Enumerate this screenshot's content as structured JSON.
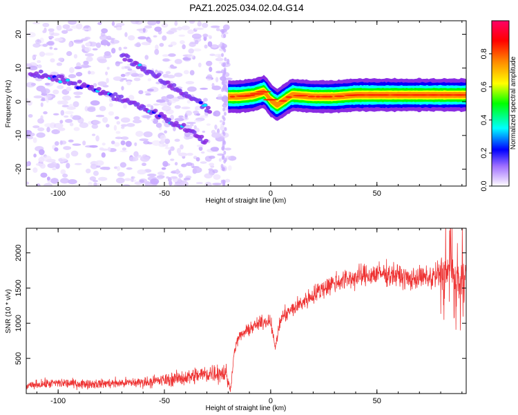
{
  "figure": {
    "title": "PAZ1.2025.034.02.04.G14"
  },
  "chart_data": [
    {
      "type": "heatmap",
      "title": "PAZ1.2025.034.02.04.G14",
      "xlabel": "Height of straight line (km)",
      "ylabel": "Frequency (Hz)",
      "xlim": [
        -115,
        92
      ],
      "ylim": [
        -25,
        24
      ],
      "xticks": [
        -100,
        -50,
        0,
        50
      ],
      "yticks": [
        -20,
        -10,
        0,
        10,
        20
      ],
      "colorbar": {
        "label": "Normalized spectral amplitude",
        "range": [
          0,
          1
        ],
        "ticks": [
          0.0,
          0.2,
          0.4,
          0.6,
          0.8
        ],
        "colormap": [
          "#ffffff",
          "#c8a8ff",
          "#8a2be2",
          "#0000ff",
          "#00ffff",
          "#00ff00",
          "#ffff00",
          "#ff8c00",
          "#ff0000",
          "#ff0066"
        ]
      },
      "features": [
        {
          "name": "upper_track",
          "x": [
            -113,
            -100,
            -90,
            -80,
            -70,
            -60,
            -50,
            -40,
            -30
          ],
          "y": [
            8,
            7,
            5,
            3,
            1,
            -2,
            -5,
            -8,
            -12
          ],
          "amplitude": 0.3
        },
        {
          "name": "lower_track",
          "x": [
            -70,
            -60,
            -55,
            -48,
            -42,
            -36,
            -32,
            -28
          ],
          "y": [
            14,
            10,
            8,
            5,
            3,
            1,
            -1,
            -3
          ],
          "amplitude": 0.3
        },
        {
          "name": "band",
          "x": [
            -20,
            -15,
            -8,
            -3,
            0,
            3,
            10,
            20,
            30,
            40,
            50,
            60,
            70,
            80,
            92
          ],
          "y": [
            1.5,
            1.5,
            2,
            3,
            0.5,
            -1,
            2,
            1.5,
            1.5,
            2,
            2,
            2,
            2,
            2,
            2
          ],
          "amplitude": 0.9
        }
      ]
    },
    {
      "type": "line",
      "xlabel": "Height of straight line (km)",
      "ylabel": "SNR (10 * v/v)",
      "xlim": [
        -115,
        92
      ],
      "ylim": [
        0,
        2350
      ],
      "xticks": [
        -100,
        -50,
        0,
        50
      ],
      "yticks": [
        500,
        1000,
        1500,
        2000
      ],
      "color": "#ee3333",
      "series": [
        {
          "x": [
            -115,
            -110,
            -100,
            -90,
            -80,
            -70,
            -60,
            -50,
            -40,
            -30,
            -25,
            -21,
            -19,
            -17,
            -15,
            -10,
            -5,
            0,
            2,
            5,
            10,
            15,
            20,
            25,
            30,
            35,
            40,
            45,
            50,
            55,
            60,
            65,
            70,
            75,
            80,
            85,
            88,
            92
          ],
          "y": [
            100,
            130,
            150,
            140,
            140,
            150,
            160,
            190,
            230,
            280,
            300,
            290,
            40,
            620,
            800,
            920,
            1000,
            1050,
            650,
            1080,
            1190,
            1300,
            1400,
            1500,
            1580,
            1620,
            1650,
            1680,
            1700,
            1700,
            1680,
            1620,
            1650,
            1640,
            1700,
            1720,
            1550,
            1700
          ]
        }
      ]
    }
  ]
}
